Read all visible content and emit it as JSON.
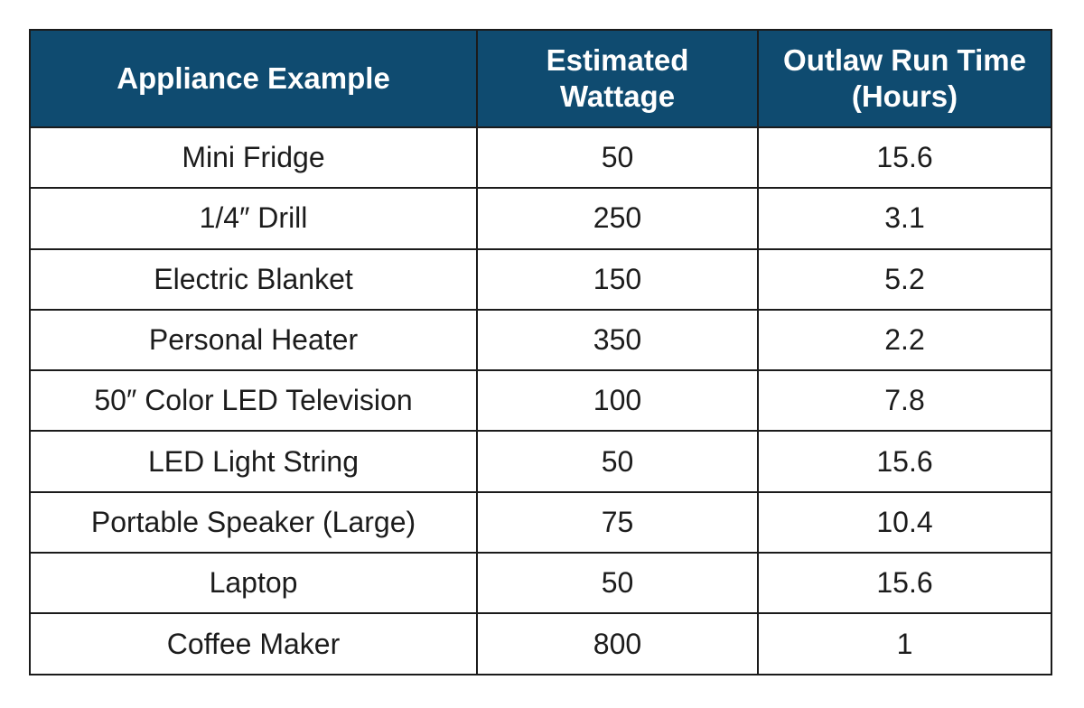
{
  "chart_data": {
    "type": "table",
    "columns": [
      [
        "Appliance Example"
      ],
      [
        "Estimated",
        "Wattage"
      ],
      [
        "Outlaw Run Time",
        "(Hours)"
      ]
    ],
    "rows": [
      [
        "Mini Fridge",
        "50",
        "15.6"
      ],
      [
        "1/4″ Drill",
        "250",
        "3.1"
      ],
      [
        "Electric Blanket",
        "150",
        "5.2"
      ],
      [
        "Personal Heater",
        "350",
        "2.2"
      ],
      [
        "50″ Color LED Television",
        "100",
        "7.8"
      ],
      [
        "LED Light String",
        "50",
        "15.6"
      ],
      [
        "Portable Speaker (Large)",
        "75",
        "10.4"
      ],
      [
        "Laptop",
        "50",
        "15.6"
      ],
      [
        "Coffee Maker",
        "800",
        "1"
      ]
    ],
    "colors": {
      "header_background": "#0f4b70",
      "header_text": "#ffffff",
      "border": "#1b1b1b"
    }
  }
}
